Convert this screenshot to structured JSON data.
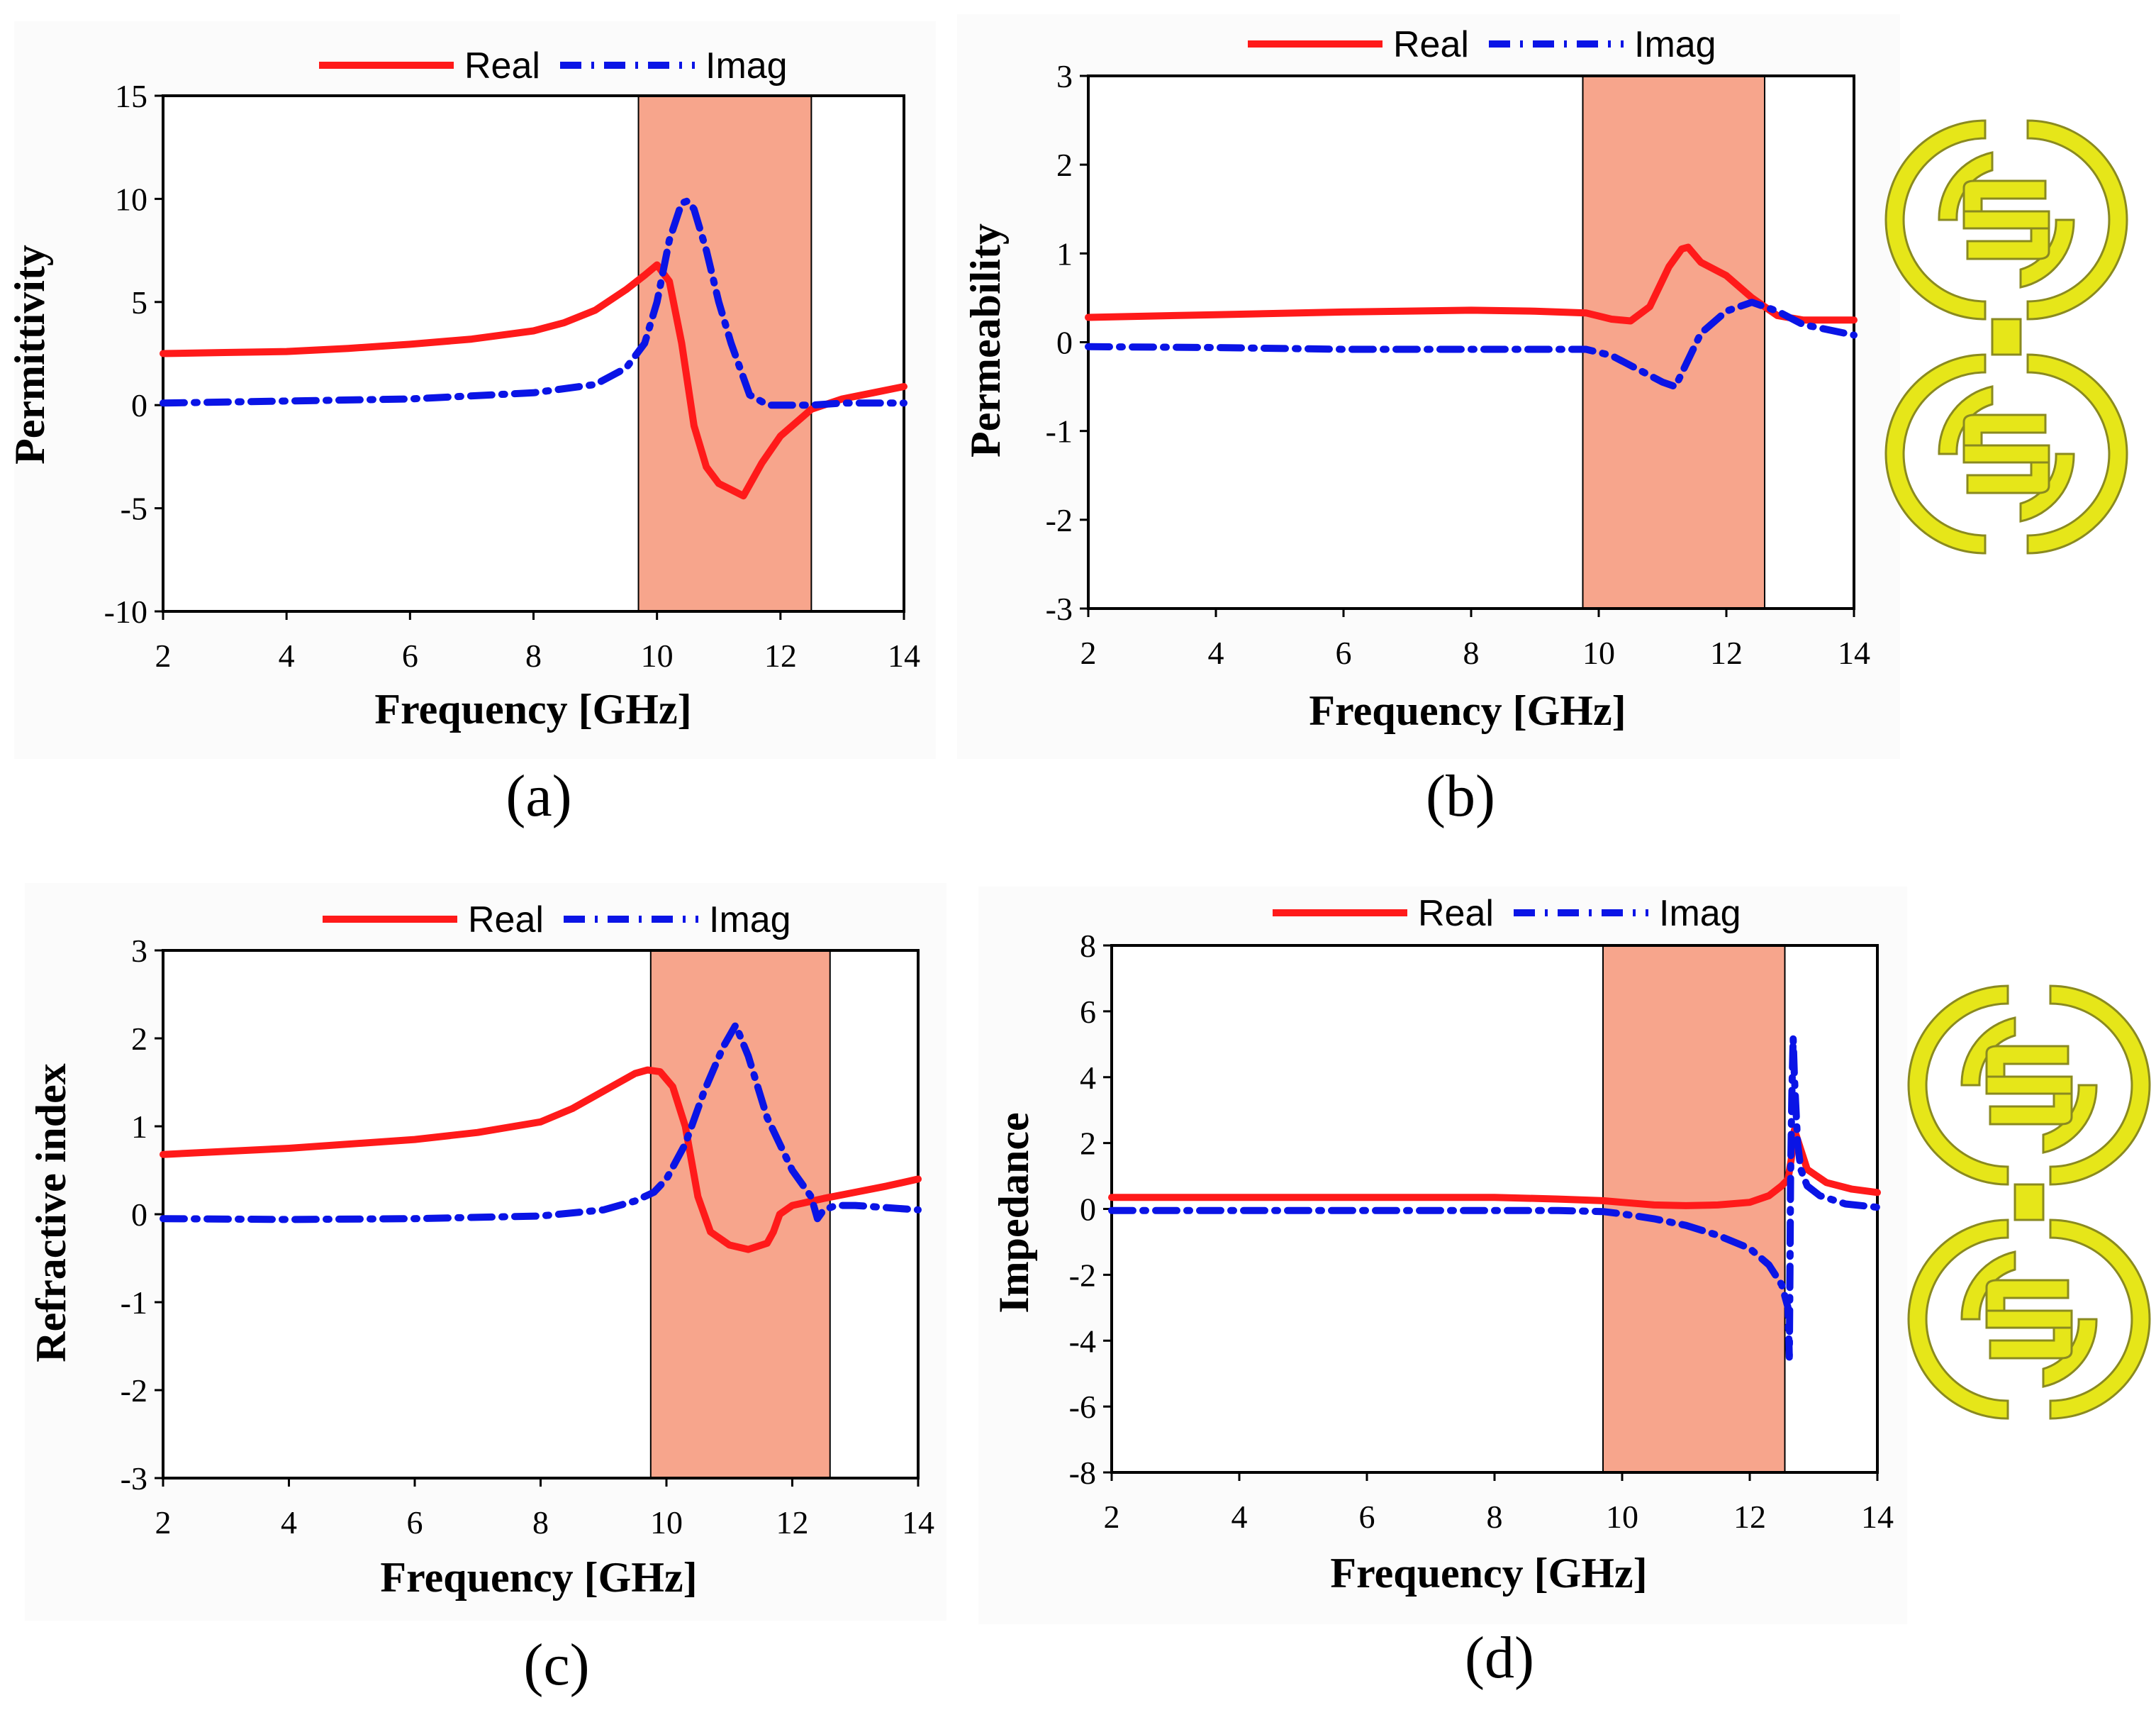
{
  "colors": {
    "real": "#ff1a1a",
    "imag": "#0a14e6",
    "band": "#f7a58c",
    "srr_fill": "#e6e619",
    "srr_stroke": "#8a8a20",
    "panel_bg": "#fbfbfb"
  },
  "icons": [
    "srr-unit-cell-icon"
  ],
  "chart_data": [
    {
      "id": "a",
      "type": "line",
      "panel_label": "(a)",
      "xlabel": "Frequency [GHz]",
      "ylabel": "Permittivity",
      "xlim": [
        2,
        14
      ],
      "ylim": [
        -10,
        15
      ],
      "xticks": [
        2,
        4,
        6,
        8,
        10,
        12,
        14
      ],
      "yticks": [
        15,
        10,
        5,
        0,
        -5,
        -10
      ],
      "legend": [
        "Real",
        "Imag"
      ],
      "highlight_band": [
        9.7,
        12.5
      ],
      "series": [
        {
          "name": "Real",
          "x": [
            2,
            3,
            4,
            5,
            6,
            7,
            8,
            8.5,
            9,
            9.5,
            9.8,
            10,
            10.2,
            10.4,
            10.6,
            10.8,
            11,
            11.2,
            11.4,
            11.7,
            12,
            12.5,
            13,
            13.5,
            14
          ],
          "y": [
            2.5,
            2.55,
            2.6,
            2.75,
            2.95,
            3.2,
            3.6,
            4.0,
            4.6,
            5.6,
            6.3,
            6.8,
            6.0,
            3.0,
            -1.0,
            -3.0,
            -3.8,
            -4.1,
            -4.4,
            -2.8,
            -1.5,
            -0.2,
            0.3,
            0.6,
            0.9
          ]
        },
        {
          "name": "Imag",
          "x": [
            2,
            4,
            6,
            8,
            9,
            9.5,
            9.8,
            10,
            10.2,
            10.4,
            10.5,
            10.6,
            10.8,
            11,
            11.2,
            11.5,
            11.8,
            12,
            12.5,
            13,
            14
          ],
          "y": [
            0.1,
            0.2,
            0.3,
            0.6,
            1.0,
            1.8,
            3.0,
            5.0,
            8.0,
            9.8,
            9.9,
            9.5,
            7.5,
            5.0,
            3.0,
            0.5,
            0.0,
            0.0,
            0.0,
            0.1,
            0.1
          ]
        }
      ]
    },
    {
      "id": "b",
      "type": "line",
      "panel_label": "(b)",
      "xlabel": "Frequency [GHz]",
      "ylabel": "Permeability",
      "xlim": [
        2,
        14
      ],
      "ylim": [
        -3,
        3
      ],
      "xticks": [
        2,
        4,
        6,
        8,
        10,
        12,
        14
      ],
      "yticks": [
        3,
        2,
        1,
        0,
        -1,
        -2,
        -3
      ],
      "legend": [
        "Real",
        "Imag"
      ],
      "highlight_band": [
        9.75,
        12.6
      ],
      "series": [
        {
          "name": "Real",
          "x": [
            2,
            4,
            6,
            8,
            9,
            9.8,
            10.2,
            10.5,
            10.8,
            11.1,
            11.3,
            11.4,
            11.6,
            12,
            12.4,
            12.8,
            13.2,
            14
          ],
          "y": [
            0.28,
            0.31,
            0.34,
            0.36,
            0.35,
            0.33,
            0.26,
            0.24,
            0.4,
            0.85,
            1.05,
            1.07,
            0.9,
            0.75,
            0.5,
            0.3,
            0.25,
            0.25
          ]
        },
        {
          "name": "Imag",
          "x": [
            2,
            4,
            6,
            8,
            9,
            9.8,
            10.2,
            10.6,
            11,
            11.2,
            11.4,
            11.6,
            12,
            12.4,
            12.8,
            13.2,
            14
          ],
          "y": [
            -0.05,
            -0.06,
            -0.08,
            -0.08,
            -0.08,
            -0.08,
            -0.15,
            -0.3,
            -0.45,
            -0.5,
            -0.2,
            0.1,
            0.35,
            0.45,
            0.35,
            0.2,
            0.08
          ]
        }
      ]
    },
    {
      "id": "c",
      "type": "line",
      "panel_label": "(c)",
      "xlabel": "Frequency [GHz]",
      "ylabel": "Refractive index",
      "xlim": [
        2,
        14
      ],
      "ylim": [
        -3,
        3
      ],
      "xticks": [
        2,
        4,
        6,
        8,
        10,
        12,
        14
      ],
      "yticks": [
        3,
        2,
        1,
        0,
        -1,
        -2,
        -3
      ],
      "legend": [
        "Real",
        "Imag"
      ],
      "highlight_band": [
        9.75,
        12.6
      ],
      "series": [
        {
          "name": "Real",
          "x": [
            2,
            4,
            6,
            7,
            8,
            8.5,
            9,
            9.5,
            9.7,
            9.9,
            10.1,
            10.3,
            10.5,
            10.7,
            11,
            11.3,
            11.6,
            11.7,
            11.8,
            12,
            12.5,
            13,
            13.5,
            14
          ],
          "y": [
            0.68,
            0.75,
            0.85,
            0.93,
            1.05,
            1.2,
            1.4,
            1.6,
            1.64,
            1.62,
            1.45,
            1.0,
            0.2,
            -0.2,
            -0.35,
            -0.4,
            -0.33,
            -0.2,
            0.0,
            0.1,
            0.18,
            0.25,
            0.32,
            0.4
          ]
        },
        {
          "name": "Imag",
          "x": [
            2,
            4,
            6,
            8,
            9,
            9.5,
            9.8,
            10,
            10.3,
            10.6,
            10.9,
            11.1,
            11.3,
            11.6,
            12,
            12.3,
            12.4,
            12.5,
            12.7,
            13,
            14
          ],
          "y": [
            -0.05,
            -0.06,
            -0.05,
            -0.02,
            0.05,
            0.15,
            0.25,
            0.4,
            0.8,
            1.4,
            1.9,
            2.15,
            1.8,
            1.1,
            0.5,
            0.2,
            -0.05,
            0.05,
            0.1,
            0.1,
            0.05
          ]
        }
      ]
    },
    {
      "id": "d",
      "type": "line",
      "panel_label": "(d)",
      "xlabel": "Frequency [GHz]",
      "ylabel": "Impedance",
      "xlim": [
        2,
        14
      ],
      "ylim": [
        -8,
        8
      ],
      "xticks": [
        2,
        4,
        6,
        8,
        10,
        12,
        14
      ],
      "yticks": [
        8,
        6,
        4,
        2,
        0,
        -2,
        -4,
        -6,
        -8
      ],
      "legend": [
        "Real",
        "Imag"
      ],
      "highlight_band": [
        9.7,
        12.55
      ],
      "series": [
        {
          "name": "Real",
          "x": [
            2,
            4,
            6,
            8,
            9,
            9.7,
            10,
            10.5,
            11,
            11.5,
            12,
            12.3,
            12.5,
            12.6,
            12.65,
            12.7,
            12.8,
            12.9,
            13.2,
            13.6,
            14
          ],
          "y": [
            0.35,
            0.35,
            0.35,
            0.35,
            0.3,
            0.25,
            0.2,
            0.12,
            0.1,
            0.12,
            0.2,
            0.4,
            0.7,
            0.9,
            1.5,
            2.4,
            1.8,
            1.2,
            0.8,
            0.6,
            0.5
          ]
        },
        {
          "name": "Imag",
          "x": [
            2,
            4,
            6,
            8,
            9,
            9.7,
            10,
            10.5,
            11,
            11.5,
            12,
            12.3,
            12.5,
            12.6,
            12.62,
            12.63,
            12.64,
            12.66,
            12.68,
            12.7,
            12.75,
            12.8,
            12.9,
            13.1,
            13.5,
            14
          ],
          "y": [
            -0.05,
            -0.05,
            -0.05,
            -0.05,
            -0.05,
            -0.08,
            -0.15,
            -0.3,
            -0.5,
            -0.8,
            -1.2,
            -1.7,
            -2.3,
            -3.0,
            -4.5,
            -2.0,
            1.0,
            3.5,
            5.2,
            4.0,
            2.0,
            1.2,
            0.7,
            0.4,
            0.15,
            0.05
          ]
        }
      ]
    }
  ]
}
